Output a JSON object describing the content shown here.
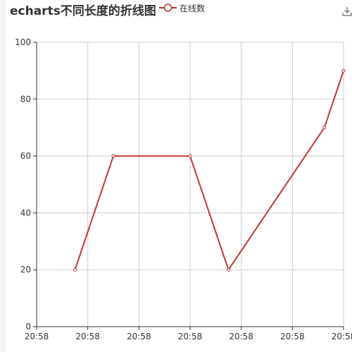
{
  "chart_data": {
    "type": "line",
    "title": "echarts不同长度的折线图",
    "legend": {
      "position": "top",
      "entries": [
        "在线数"
      ]
    },
    "x_tick_labels": [
      "20:58",
      "20:58",
      "20:58",
      "20:58",
      "20:58",
      "20:58",
      "20:58"
    ],
    "x_range": [
      0,
      8
    ],
    "ylim": [
      0,
      100
    ],
    "y_ticks": [
      0,
      20,
      40,
      60,
      80,
      100
    ],
    "grid": true,
    "series": [
      {
        "name": "在线数",
        "x": [
          1,
          2,
          4,
          5,
          7.5,
          8
        ],
        "values": [
          20,
          60,
          60,
          20,
          70,
          90
        ]
      }
    ],
    "colors": {
      "line": "#c23531",
      "grid": "#cccccc",
      "axis": "#333333"
    }
  },
  "toolbox": {
    "icon": "download-icon"
  }
}
